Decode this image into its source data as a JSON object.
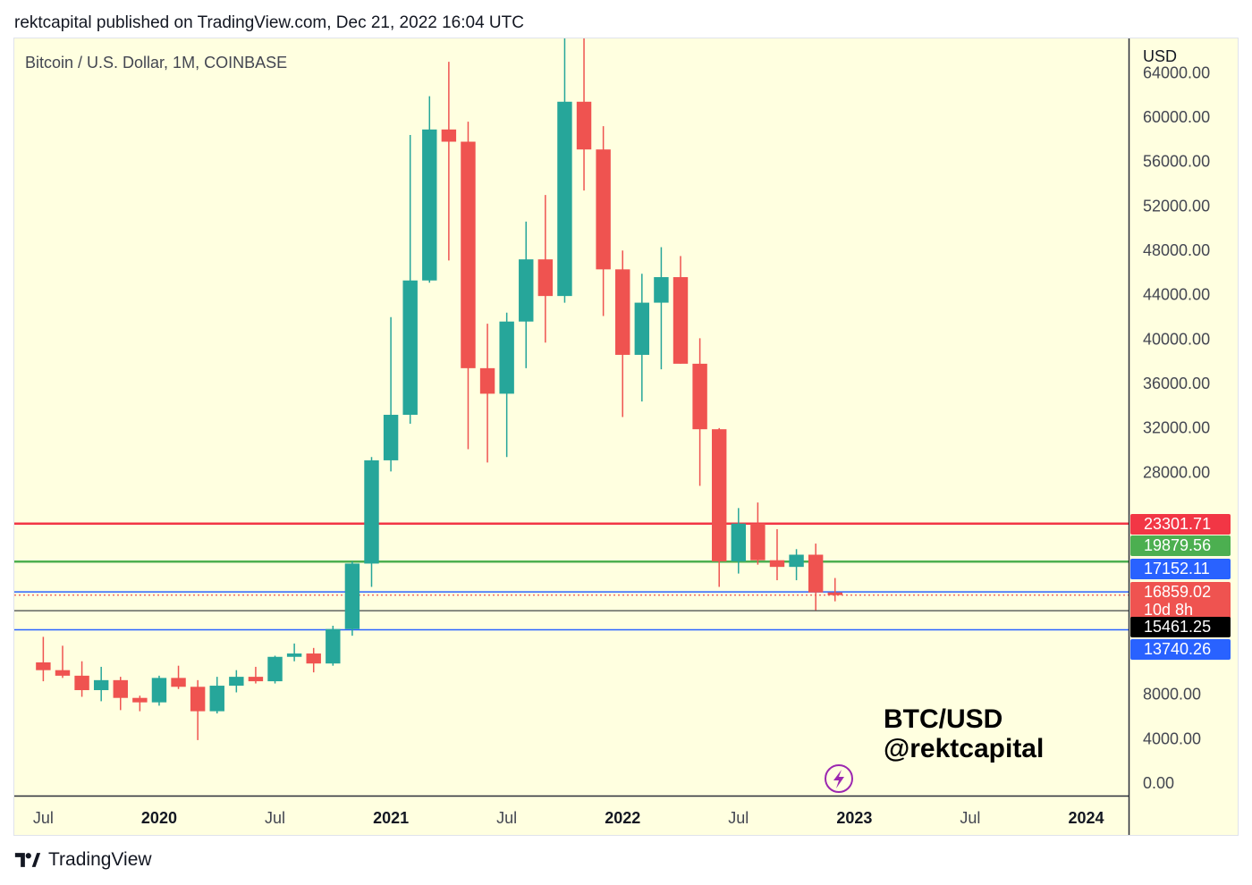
{
  "header": {
    "text": "rektcapital published on TradingView.com, Dec 21, 2022 16:04 UTC"
  },
  "symbol_title": "Bitcoin / U.S. Dollar, 1M, COINBASE",
  "watermark": {
    "line1": "BTC/USD",
    "line2": "@rektcapital"
  },
  "footer": {
    "brand": "TradingView"
  },
  "colors": {
    "background": "#ffffe0",
    "up": "#26a69a",
    "down": "#ef5350",
    "resistance": "#f23645",
    "green_line": "#4caf50",
    "blue_line": "#2962ff",
    "black_line": "#131722",
    "lightning": "#9c27b0"
  },
  "icons": {
    "lightning": "lightning-icon",
    "logo": "tradingview-logo-icon"
  },
  "chart_data": {
    "type": "candlestick",
    "title": "Bitcoin / U.S. Dollar, 1M, COINBASE",
    "currency_label": "USD",
    "y_scale": "linear",
    "ylim": [
      -1200,
      67000
    ],
    "y_ticks": [
      "64000.00",
      "60000.00",
      "56000.00",
      "52000.00",
      "48000.00",
      "44000.00",
      "40000.00",
      "36000.00",
      "32000.00",
      "28000.00",
      "8000.00",
      "4000.00",
      "0.00"
    ],
    "x_ticks": [
      {
        "label": "Jul",
        "index": 0,
        "bold": false
      },
      {
        "label": "2020",
        "index": 6,
        "bold": true
      },
      {
        "label": "Jul",
        "index": 12,
        "bold": false
      },
      {
        "label": "2021",
        "index": 18,
        "bold": true
      },
      {
        "label": "Jul",
        "index": 24,
        "bold": false
      },
      {
        "label": "2022",
        "index": 30,
        "bold": true
      },
      {
        "label": "Jul",
        "index": 36,
        "bold": false
      },
      {
        "label": "2023",
        "index": 42,
        "bold": true
      },
      {
        "label": "Jul",
        "index": 48,
        "bold": false
      },
      {
        "label": "2024",
        "index": 54,
        "bold": true
      }
    ],
    "x_range": [
      -1.5,
      56.2
    ],
    "candles": [
      {
        "date": "2019-07",
        "o": 10800,
        "h": 13100,
        "l": 9100,
        "c": 10100
      },
      {
        "date": "2019-08",
        "o": 10100,
        "h": 12300,
        "l": 9400,
        "c": 9600
      },
      {
        "date": "2019-09",
        "o": 9600,
        "h": 10900,
        "l": 7700,
        "c": 8300
      },
      {
        "date": "2019-10",
        "o": 8300,
        "h": 10400,
        "l": 7300,
        "c": 9200
      },
      {
        "date": "2019-11",
        "o": 9200,
        "h": 9500,
        "l": 6500,
        "c": 7600
      },
      {
        "date": "2019-12",
        "o": 7600,
        "h": 7800,
        "l": 6400,
        "c": 7200
      },
      {
        "date": "2020-01",
        "o": 7200,
        "h": 9600,
        "l": 6900,
        "c": 9400
      },
      {
        "date": "2020-02",
        "o": 9400,
        "h": 10500,
        "l": 8400,
        "c": 8600
      },
      {
        "date": "2020-03",
        "o": 8600,
        "h": 9200,
        "l": 3800,
        "c": 6400
      },
      {
        "date": "2020-04",
        "o": 6400,
        "h": 9500,
        "l": 6200,
        "c": 8700
      },
      {
        "date": "2020-05",
        "o": 8700,
        "h": 10100,
        "l": 8100,
        "c": 9500
      },
      {
        "date": "2020-06",
        "o": 9500,
        "h": 10400,
        "l": 8900,
        "c": 9100
      },
      {
        "date": "2020-07",
        "o": 9100,
        "h": 11400,
        "l": 8900,
        "c": 11300
      },
      {
        "date": "2020-08",
        "o": 11300,
        "h": 12500,
        "l": 10900,
        "c": 11600
      },
      {
        "date": "2020-09",
        "o": 11600,
        "h": 12100,
        "l": 9900,
        "c": 10700
      },
      {
        "date": "2020-10",
        "o": 10700,
        "h": 14100,
        "l": 10500,
        "c": 13800
      },
      {
        "date": "2020-11",
        "o": 13800,
        "h": 19900,
        "l": 13200,
        "c": 19700
      },
      {
        "date": "2020-12",
        "o": 19700,
        "h": 29300,
        "l": 17600,
        "c": 29000
      },
      {
        "date": "2021-01",
        "o": 29000,
        "h": 41900,
        "l": 28000,
        "c": 33100
      },
      {
        "date": "2021-02",
        "o": 33100,
        "h": 58300,
        "l": 32300,
        "c": 45200
      },
      {
        "date": "2021-03",
        "o": 45200,
        "h": 61800,
        "l": 45000,
        "c": 58800
      },
      {
        "date": "2021-04",
        "o": 58800,
        "h": 64900,
        "l": 47000,
        "c": 57700
      },
      {
        "date": "2021-05",
        "o": 57700,
        "h": 59500,
        "l": 30000,
        "c": 37300
      },
      {
        "date": "2021-06",
        "o": 37300,
        "h": 41300,
        "l": 28800,
        "c": 35000
      },
      {
        "date": "2021-07",
        "o": 35000,
        "h": 42300,
        "l": 29300,
        "c": 41500
      },
      {
        "date": "2021-08",
        "o": 41500,
        "h": 50500,
        "l": 37300,
        "c": 47100
      },
      {
        "date": "2021-09",
        "o": 47100,
        "h": 52900,
        "l": 39600,
        "c": 43800
      },
      {
        "date": "2021-10",
        "o": 43800,
        "h": 67000,
        "l": 43200,
        "c": 61300
      },
      {
        "date": "2021-11",
        "o": 61300,
        "h": 69000,
        "l": 53300,
        "c": 57000
      },
      {
        "date": "2021-12",
        "o": 57000,
        "h": 59100,
        "l": 42000,
        "c": 46200
      },
      {
        "date": "2022-01",
        "o": 46200,
        "h": 47900,
        "l": 32900,
        "c": 38500
      },
      {
        "date": "2022-02",
        "o": 38500,
        "h": 45800,
        "l": 34300,
        "c": 43200
      },
      {
        "date": "2022-03",
        "o": 43200,
        "h": 48200,
        "l": 37200,
        "c": 45500
      },
      {
        "date": "2022-04",
        "o": 45500,
        "h": 47400,
        "l": 37700,
        "c": 37700
      },
      {
        "date": "2022-05",
        "o": 37700,
        "h": 40000,
        "l": 26700,
        "c": 31800
      },
      {
        "date": "2022-06",
        "o": 31800,
        "h": 31900,
        "l": 17600,
        "c": 19900
      },
      {
        "date": "2022-07",
        "o": 19900,
        "h": 24700,
        "l": 18800,
        "c": 23300
      },
      {
        "date": "2022-08",
        "o": 23300,
        "h": 25200,
        "l": 19600,
        "c": 20000
      },
      {
        "date": "2022-09",
        "o": 20000,
        "h": 22800,
        "l": 18200,
        "c": 19400
      },
      {
        "date": "2022-10",
        "o": 19400,
        "h": 21000,
        "l": 18200,
        "c": 20500
      },
      {
        "date": "2022-11",
        "o": 20500,
        "h": 21500,
        "l": 15500,
        "c": 17100
      },
      {
        "date": "2022-12",
        "o": 17100,
        "h": 18400,
        "l": 16300,
        "c": 16860
      }
    ],
    "horizontal_lines": [
      {
        "value": 23301.71,
        "label": "23301.71",
        "color": "#f23645",
        "width": 2.5
      },
      {
        "value": 19879.56,
        "label": "19879.56",
        "color": "#4caf50",
        "width": 2.5
      },
      {
        "value": 17152.11,
        "label": "17152.11",
        "color": "#2962ff",
        "width": 1.5
      },
      {
        "value": 15461.25,
        "label": "15461.25",
        "color": "#131722",
        "width": 1
      },
      {
        "value": 13740.26,
        "label": "13740.26",
        "color": "#2962ff",
        "width": 1.5
      }
    ],
    "price_line": {
      "value": 16859.02,
      "color": "#ef5350",
      "dotted": true
    },
    "price_labels": [
      {
        "text": "23301.71",
        "bg": "#f23645",
        "fg": "#ffffff",
        "row": 0
      },
      {
        "text": "19879.56",
        "bg": "#4caf50",
        "fg": "#ffffff",
        "row": 1
      },
      {
        "text": "17152.11",
        "bg": "#2962ff",
        "fg": "#ffffff",
        "row": 2
      },
      {
        "text": "16859.02",
        "sub": "10d 8h",
        "bg": "#ef5350",
        "fg": "#ffffff",
        "row": 3
      },
      {
        "text": "15461.25",
        "bg": "#000000",
        "fg": "#ffffff",
        "row": 4
      },
      {
        "text": "13740.26",
        "bg": "#2962ff",
        "fg": "#ffffff",
        "row": 5
      }
    ]
  }
}
